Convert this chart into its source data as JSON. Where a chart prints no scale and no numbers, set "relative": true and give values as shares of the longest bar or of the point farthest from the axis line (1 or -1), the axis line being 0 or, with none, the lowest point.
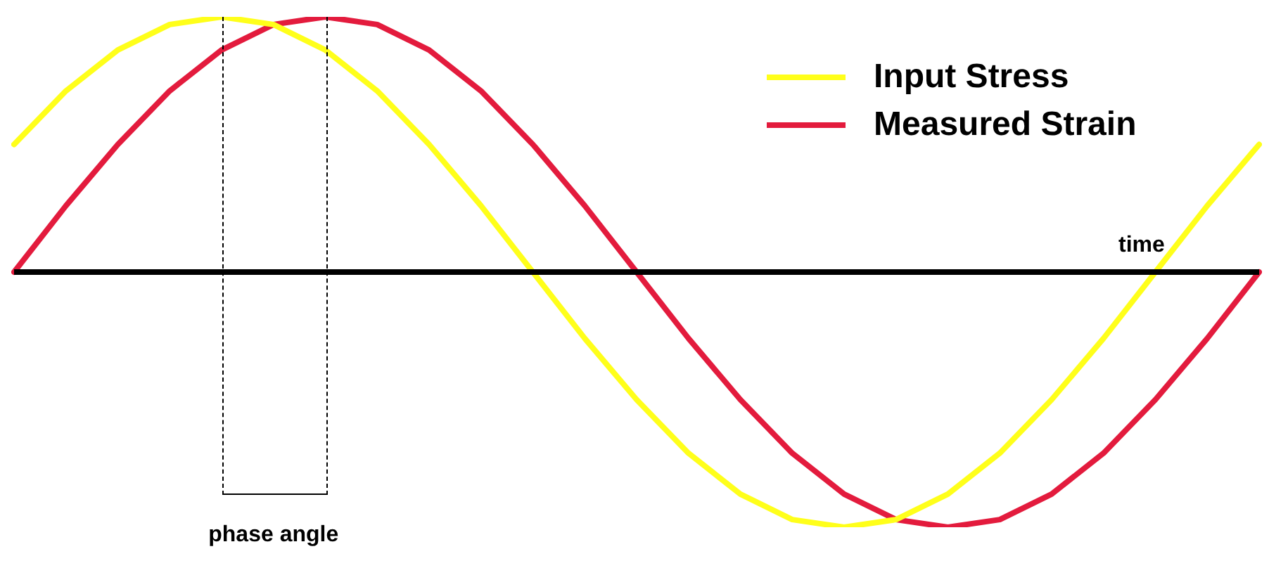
{
  "chart_data": {
    "type": "line",
    "relative": true,
    "xlabel": "time",
    "annotations": [
      "phase angle"
    ],
    "legend": "top right",
    "marker": "none",
    "line_style": "solid",
    "categories": [
      null,
      null,
      null,
      null,
      null,
      null,
      null,
      null,
      null,
      null,
      null,
      null,
      null,
      null,
      null,
      null,
      null,
      null,
      null,
      null,
      null,
      null,
      null,
      null,
      null
    ],
    "series": [
      {
        "name": "Input Stress",
        "color": "#ffff1a",
        "values": [
          0.5,
          0.71,
          0.87,
          0.97,
          1,
          0.97,
          0.87,
          0.71,
          0.5,
          0.26,
          0,
          -0.26,
          -0.5,
          -0.71,
          -0.87,
          -0.97,
          -1,
          -0.97,
          -0.87,
          -0.71,
          -0.5,
          -0.26,
          0,
          0.26,
          0.5
        ]
      },
      {
        "name": "Measured Strain",
        "color": "#e31b3d",
        "values": [
          0,
          0.26,
          0.5,
          0.71,
          0.87,
          0.97,
          1,
          0.97,
          0.87,
          0.71,
          0.5,
          0.26,
          0,
          -0.26,
          -0.5,
          -0.71,
          -0.87,
          -0.97,
          -1,
          -0.97,
          -0.87,
          -0.71,
          -0.5,
          -0.26,
          0
        ]
      }
    ]
  }
}
